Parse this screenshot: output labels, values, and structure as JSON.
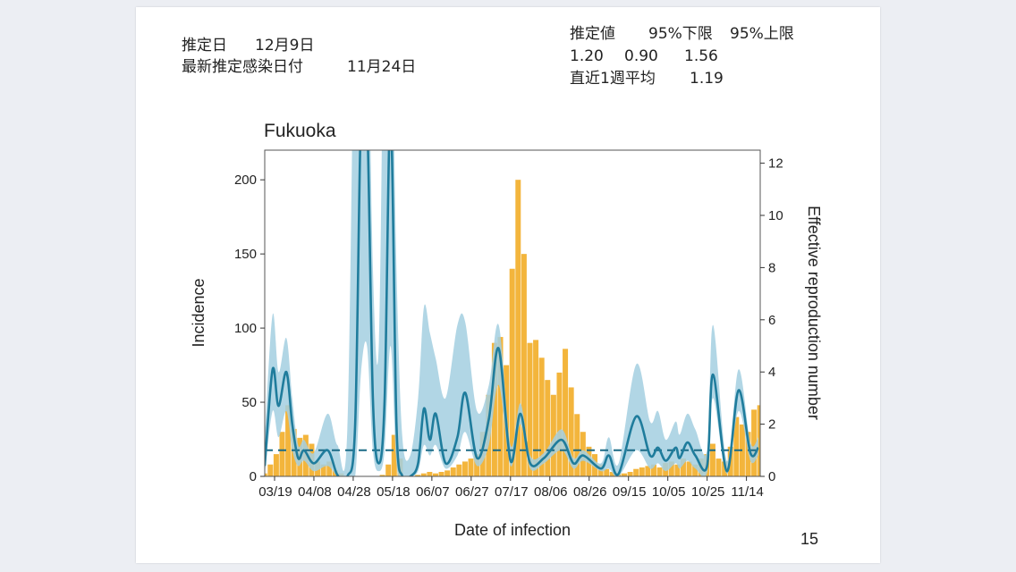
{
  "header": {
    "estimate_date_label": "推定日",
    "estimate_date": "12月9日",
    "latest_infection_label": "最新推定感染日付",
    "latest_infection_date": "11月24日",
    "col_estimate": "推定値",
    "col_lower": "95%下限",
    "col_upper": "95%上限",
    "estimate": "1.20",
    "lower": "0.90",
    "upper": "1.56",
    "weekly_avg_label": "直近1週平均",
    "weekly_avg": "1.19"
  },
  "page_number": "15",
  "chart_data": {
    "type": "bar+line",
    "title": "Fukuoka",
    "xlabel": "Date of infection",
    "ylabel": "Incidence",
    "y2label": "Effective reproduction number",
    "x_start_date": "03/14",
    "xlim_days": [
      0,
      252
    ],
    "ylim": [
      0,
      220
    ],
    "y2lim": [
      0,
      12.5
    ],
    "xticks": [
      {
        "day": 5,
        "label": "03/19"
      },
      {
        "day": 25,
        "label": "04/08"
      },
      {
        "day": 45,
        "label": "04/28"
      },
      {
        "day": 65,
        "label": "05/18"
      },
      {
        "day": 85,
        "label": "06/07"
      },
      {
        "day": 105,
        "label": "06/27"
      },
      {
        "day": 125,
        "label": "07/17"
      },
      {
        "day": 145,
        "label": "08/06"
      },
      {
        "day": 165,
        "label": "08/26"
      },
      {
        "day": 185,
        "label": "09/15"
      },
      {
        "day": 205,
        "label": "10/05"
      },
      {
        "day": 225,
        "label": "10/25"
      },
      {
        "day": 245,
        "label": "11/14"
      }
    ],
    "yticks": [
      "0",
      "50",
      "100",
      "150",
      "200"
    ],
    "y2ticks": [
      "0",
      "2",
      "4",
      "6",
      "8",
      "10",
      "12"
    ],
    "reference_line_rt": 1,
    "incidence_step_days": 3,
    "incidence": [
      2,
      8,
      15,
      30,
      48,
      32,
      26,
      28,
      22,
      10,
      8,
      10,
      4,
      2,
      0,
      0,
      0,
      0,
      0,
      0,
      1,
      8,
      28,
      12,
      0,
      0,
      1,
      2,
      3,
      2,
      3,
      4,
      6,
      8,
      10,
      12,
      15,
      30,
      55,
      90,
      94,
      75,
      140,
      200,
      150,
      90,
      92,
      80,
      65,
      55,
      70,
      86,
      60,
      42,
      30,
      20,
      15,
      8,
      5,
      3,
      2,
      2,
      3,
      5,
      6,
      7,
      8,
      6,
      9,
      10,
      8,
      12,
      10,
      8,
      12,
      15,
      22,
      12,
      10,
      20,
      40,
      35,
      30,
      45,
      48
    ],
    "rt": [
      [
        0,
        0.4,
        0.1,
        1.5
      ],
      [
        4,
        4.1,
        2.5,
        6.2
      ],
      [
        7,
        2.7,
        1.5,
        4.0
      ],
      [
        11,
        4.0,
        2.5,
        5.3
      ],
      [
        14,
        2.0,
        1.0,
        3.0
      ],
      [
        17,
        0.7,
        0.4,
        1.2
      ],
      [
        20,
        1.0,
        0.6,
        1.4
      ],
      [
        25,
        0.5,
        0.2,
        0.9
      ],
      [
        32,
        1.0,
        0.4,
        2.4
      ],
      [
        37,
        0.05,
        0,
        1.2
      ],
      [
        42,
        0,
        0,
        1.8
      ],
      [
        46,
        2,
        0,
        20
      ],
      [
        49,
        14,
        4,
        20
      ],
      [
        52,
        14,
        5,
        20
      ],
      [
        55,
        3,
        1,
        8
      ],
      [
        58,
        0.5,
        0.2,
        5
      ],
      [
        61,
        3,
        1,
        20
      ],
      [
        64,
        14,
        5,
        20
      ],
      [
        67,
        2,
        0.5,
        8
      ],
      [
        70,
        0,
        0,
        1.5
      ],
      [
        74,
        0,
        0,
        0.8
      ],
      [
        78,
        0.5,
        0.2,
        3
      ],
      [
        81,
        2.6,
        1.2,
        6.5
      ],
      [
        84,
        1.4,
        0.8,
        5.5
      ],
      [
        87,
        2.4,
        1.2,
        4.5
      ],
      [
        92,
        0.5,
        0.3,
        3
      ],
      [
        98,
        1.5,
        0.8,
        5.8
      ],
      [
        102,
        3.2,
        1.7,
        5.9
      ],
      [
        108,
        0.7,
        0.4,
        2.5
      ],
      [
        114,
        2.2,
        1.2,
        3.5
      ],
      [
        119,
        4.9,
        3.5,
        5.8
      ],
      [
        125,
        0.6,
        0.4,
        1.2
      ],
      [
        130,
        2.4,
        2.0,
        2.8
      ],
      [
        135,
        0.5,
        0.3,
        0.8
      ],
      [
        142,
        0.7,
        0.5,
        0.9
      ],
      [
        151,
        1.4,
        1.0,
        1.8
      ],
      [
        157,
        0.5,
        0.3,
        0.7
      ],
      [
        162,
        0.8,
        0.6,
        1.0
      ],
      [
        171,
        0.3,
        0.2,
        0.5
      ],
      [
        175,
        0.8,
        0.3,
        1.5
      ],
      [
        180,
        0.1,
        0,
        0.5
      ],
      [
        189,
        2.3,
        1.0,
        4.3
      ],
      [
        196,
        0.8,
        0.3,
        2.1
      ],
      [
        200,
        1.1,
        0.5,
        2.5
      ],
      [
        204,
        0.6,
        0.2,
        1.4
      ],
      [
        209,
        1.1,
        0.5,
        2.1
      ],
      [
        211,
        0.7,
        0.3,
        1.6
      ],
      [
        215,
        1.3,
        0.6,
        2.4
      ],
      [
        219,
        0.8,
        0.3,
        1.8
      ],
      [
        225,
        0.4,
        0.15,
        1.0
      ],
      [
        228,
        3.9,
        3.0,
        5.8
      ],
      [
        235,
        0.2,
        0.1,
        0.6
      ],
      [
        241,
        3.3,
        2.5,
        4.1
      ],
      [
        247,
        0.9,
        0.6,
        1.3
      ],
      [
        251,
        1.1,
        0.8,
        1.5
      ]
    ],
    "rt_columns": [
      "day",
      "estimate",
      "lower95",
      "upper95"
    ],
    "colors": {
      "bars": "#f3b53c",
      "band": "#a3cfe0",
      "line": "#1f7c9c"
    }
  }
}
